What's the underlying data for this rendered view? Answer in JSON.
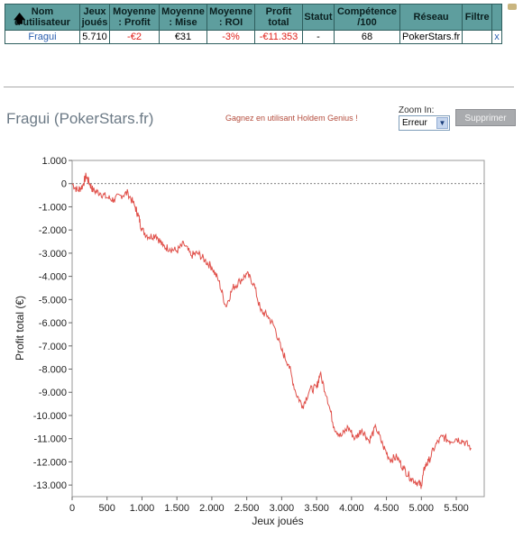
{
  "table": {
    "headers": [
      "Nom d'utilisateur",
      "Jeux joués",
      "Moyenne : Profit",
      "Moyenne : Mise",
      "Moyenne : ROI",
      "Profit total",
      "Statut",
      "Compétence /100",
      "Réseau",
      "Filtre",
      ""
    ],
    "row": {
      "name": "Fragui",
      "games": "5.710",
      "avg_profit": "-€2",
      "avg_stake": "€31",
      "avg_roi": "-3%",
      "total_profit": "-€11.353",
      "status": "-",
      "skill": "68",
      "network": "PokerStars.fr",
      "filter": "",
      "remove": "x"
    }
  },
  "player_title": "Fragui (PokerStars.fr)",
  "promo": "Gagnez en utilisant Holdem Genius !",
  "zoom": {
    "label": "Zoom In:",
    "selected": "Erreur"
  },
  "delete_button": "Supprimer",
  "chart_data": {
    "type": "line",
    "xlabel": "Jeux joués",
    "ylabel": "Profit total (€)",
    "xlim": [
      0,
      5900
    ],
    "ylim": [
      -13500,
      1000
    ],
    "xticks": [
      0,
      500,
      1000,
      1500,
      2000,
      2500,
      3000,
      3500,
      4000,
      4500,
      5000,
      5500
    ],
    "xtick_labels": [
      "0",
      "500",
      "1.000",
      "1.500",
      "2.000",
      "2.500",
      "3.000",
      "3.500",
      "4.000",
      "4.500",
      "5.000",
      "5.500"
    ],
    "yticks": [
      1000,
      0,
      -1000,
      -2000,
      -3000,
      -4000,
      -5000,
      -6000,
      -7000,
      -8000,
      -9000,
      -10000,
      -11000,
      -12000,
      -13000
    ],
    "ytick_labels": [
      "1.000",
      "0",
      "-1.000",
      "-2.000",
      "-3.000",
      "-4.000",
      "-5.000",
      "-6.000",
      "-7.000",
      "-8.000",
      "-9.000",
      "-10.000",
      "-11.000",
      "-12.000",
      "-13.000"
    ],
    "line_color": "#e0504a",
    "zero_line": true,
    "grid": false,
    "series": [
      {
        "x": [
          0,
          80,
          150,
          200,
          250,
          300,
          400,
          500,
          600,
          700,
          800,
          900,
          950,
          1000,
          1100,
          1200,
          1300,
          1400,
          1500,
          1600,
          1700,
          1800,
          1900,
          2000,
          2100,
          2200,
          2300,
          2400,
          2500,
          2600,
          2700,
          2800,
          2900,
          3000,
          3100,
          3200,
          3300,
          3400,
          3500,
          3550,
          3650,
          3750,
          3850,
          3950,
          4050,
          4150,
          4250,
          4350,
          4450,
          4550,
          4650,
          4750,
          4850,
          4950,
          5000,
          5050,
          5100,
          5200,
          5300,
          5400,
          5500,
          5600,
          5710
        ],
        "values": [
          0,
          -300,
          -100,
          350,
          0,
          -300,
          -400,
          -600,
          -700,
          -500,
          -400,
          -1000,
          -1400,
          -2000,
          -2300,
          -2200,
          -2700,
          -2800,
          -2900,
          -2600,
          -3100,
          -3000,
          -3300,
          -3600,
          -4200,
          -5300,
          -4500,
          -4200,
          -3900,
          -4300,
          -5500,
          -5700,
          -6200,
          -7200,
          -7800,
          -9000,
          -9600,
          -8900,
          -8800,
          -8200,
          -9200,
          -10500,
          -10900,
          -10500,
          -11000,
          -10600,
          -11100,
          -10500,
          -11300,
          -11900,
          -11800,
          -12300,
          -12700,
          -12900,
          -13000,
          -12200,
          -12000,
          -11300,
          -10900,
          -11100,
          -11000,
          -11100,
          -11400
        ]
      }
    ]
  }
}
